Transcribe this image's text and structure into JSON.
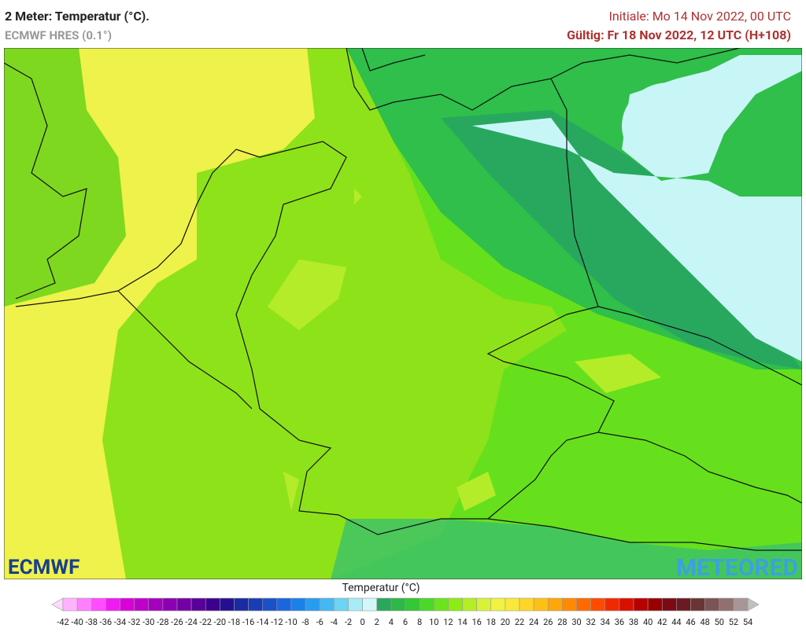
{
  "header": {
    "title": "2 Meter: Temperatur (°C).",
    "subtitle": "ECMWF HRES (0.1°)",
    "init": "Initiale: Mo 14 Nov 2022, 00 UTC",
    "valid": "Gültig: Fr 18 Nov 2022, 12 UTC (H+108)"
  },
  "map": {
    "logo_left": "ECMWF",
    "logo_right": "METEORED"
  },
  "legend": {
    "title": "Temperatur (°C)",
    "ticks": [
      -42,
      -40,
      -38,
      -36,
      -34,
      -32,
      -30,
      -28,
      -26,
      -24,
      -22,
      -20,
      -18,
      -16,
      -14,
      -12,
      -10,
      -8,
      -6,
      -4,
      -2,
      0,
      2,
      4,
      6,
      8,
      10,
      12,
      14,
      16,
      18,
      20,
      22,
      24,
      26,
      28,
      30,
      32,
      34,
      36,
      38,
      40,
      42,
      44,
      46,
      48,
      50,
      52,
      54
    ],
    "colors": [
      "#ffd9ff",
      "#ffb3ff",
      "#ff80ff",
      "#ff4dff",
      "#f21af2",
      "#d900d9",
      "#bf00cc",
      "#a600bf",
      "#8c00b3",
      "#7300a6",
      "#590099",
      "#3d008c",
      "#24108f",
      "#1a2aa0",
      "#1a3cb5",
      "#1a50c8",
      "#1a66dd",
      "#1a80ea",
      "#2a9cf0",
      "#44b8f2",
      "#6cd4f4",
      "#a8ecf6",
      "#d4f8fa",
      "#2aa85a",
      "#2eb848",
      "#34c834",
      "#4cd828",
      "#6ae41c",
      "#8cec14",
      "#b4ef22",
      "#d8f236",
      "#f2f240",
      "#fce83a",
      "#ffd628",
      "#ffc014",
      "#ffa60a",
      "#ff8a00",
      "#ff6a00",
      "#ff4a00",
      "#f02a00",
      "#d81000",
      "#b80000",
      "#980000",
      "#7c0a14",
      "#6a1a22",
      "#6a3434",
      "#7c5454",
      "#907070",
      "#a89696",
      "#c0c0c0"
    ]
  }
}
